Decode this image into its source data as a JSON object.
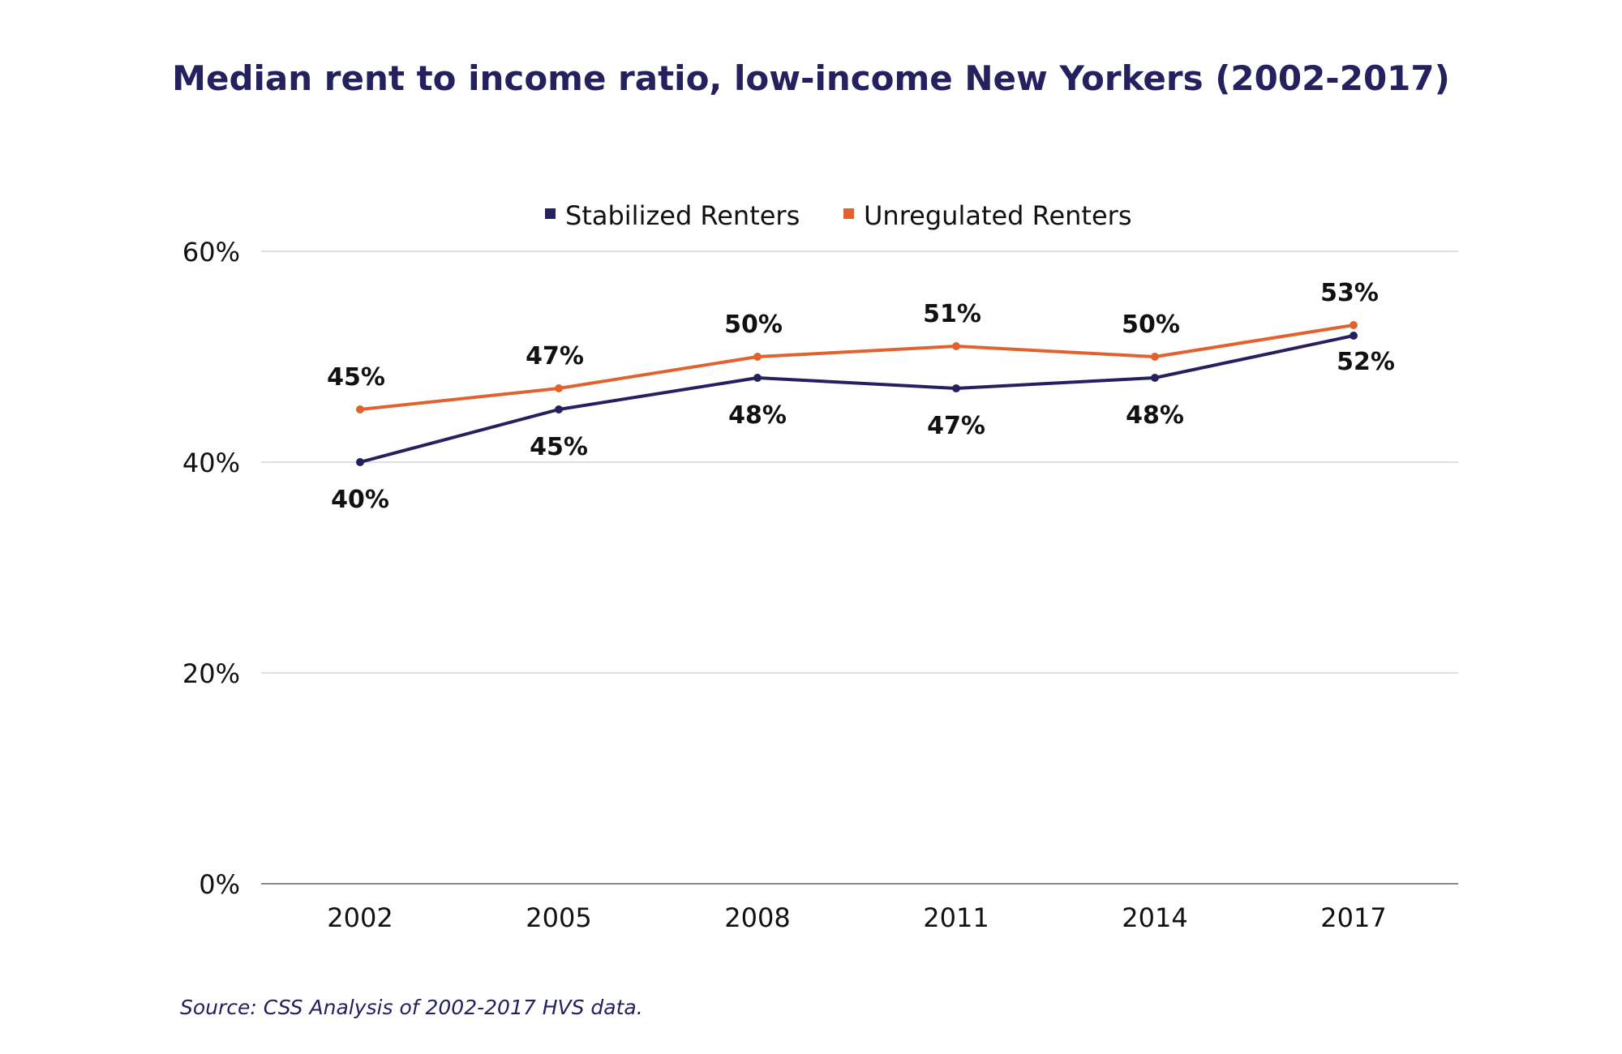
{
  "chart_data": {
    "type": "line",
    "title": "Median rent to income ratio, low-income New Yorkers (2002-2017)",
    "categories": [
      "2002",
      "2005",
      "2008",
      "2011",
      "2014",
      "2017"
    ],
    "series": [
      {
        "name": "Stabilized Renters",
        "color": "#25215e",
        "values": [
          40,
          45,
          48,
          47,
          48,
          52
        ],
        "labels": [
          "40%",
          "45%",
          "48%",
          "47%",
          "48%",
          "52%"
        ]
      },
      {
        "name": "Unregulated Renters",
        "color": "#e0622e",
        "values": [
          45,
          47,
          50,
          51,
          50,
          53
        ],
        "labels": [
          "45%",
          "47%",
          "50%",
          "51%",
          "50%",
          "53%"
        ]
      }
    ],
    "ylim": [
      0,
      60
    ],
    "yticks": [
      0,
      20,
      40,
      60
    ],
    "ytick_labels": [
      "0%",
      "20%",
      "40%",
      "60%"
    ],
    "grid": true,
    "legend_position": "top-center",
    "source": "Source: CSS Analysis of 2002-2017 HVS data."
  }
}
